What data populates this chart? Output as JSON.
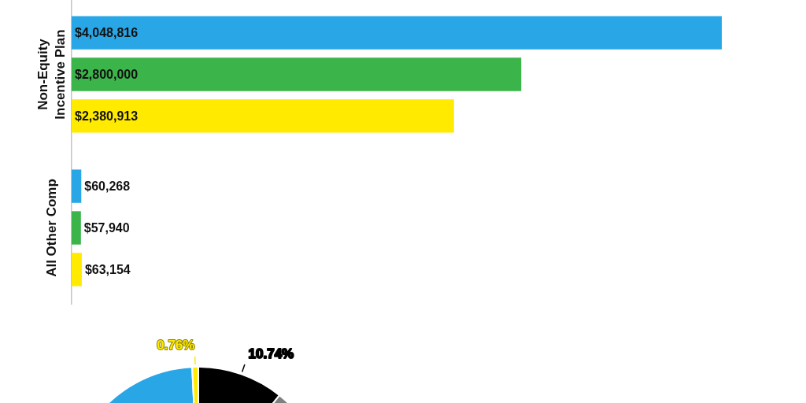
{
  "chart_data": [
    {
      "type": "bar",
      "orientation": "horizontal",
      "categories": [
        "Non-Equity Incentive Plan",
        "All Other Comp"
      ],
      "series": [
        {
          "color": "#29a6e6",
          "values": [
            4048816,
            60268
          ],
          "value_labels": [
            "$4,048,816",
            "$60,268"
          ]
        },
        {
          "color": "#3bb54a",
          "values": [
            2800000,
            57940
          ],
          "value_labels": [
            "$2,800,000",
            "$57,940"
          ]
        },
        {
          "color": "#ffea00",
          "values": [
            2380913,
            63154
          ],
          "value_labels": [
            "$2,380,913",
            "$63,154"
          ]
        }
      ]
    },
    {
      "type": "pie",
      "categories": [
        null,
        null,
        null,
        null
      ],
      "values": [
        10.74,
        60,
        28.5,
        0.76
      ],
      "colors": [
        "#000000",
        "#808080",
        "#29a6e6",
        "#ffea00"
      ],
      "value_labels": [
        "10.74%",
        null,
        null,
        "0.76%"
      ]
    }
  ]
}
